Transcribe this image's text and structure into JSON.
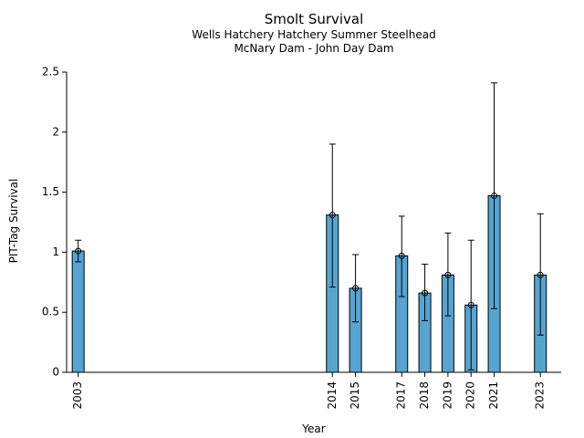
{
  "chart_data": {
    "type": "bar",
    "title": "Smolt Survival",
    "subtitle_lines": [
      "Wells Hatchery Hatchery Summer Steelhead",
      "McNary Dam - John Day Dam"
    ],
    "xlabel": "Year",
    "ylabel": "PIT-Tag Survival",
    "ylim": [
      0,
      2.5
    ],
    "xlim": [
      2002.5,
      2023.9
    ],
    "yticks": [
      0,
      0.5,
      1,
      1.5,
      2,
      2.5
    ],
    "ytick_labels": [
      "0",
      "0.5",
      "1",
      "1.5",
      "2",
      "2.5"
    ],
    "bar_color": "#56a5d1",
    "points": [
      {
        "year": 2003,
        "label": "2003",
        "value": 1.01,
        "lower": 0.92,
        "upper": 1.1
      },
      {
        "year": 2014,
        "label": "2014",
        "value": 1.31,
        "lower": 0.71,
        "upper": 1.9
      },
      {
        "year": 2015,
        "label": "2015",
        "value": 0.7,
        "lower": 0.42,
        "upper": 0.98
      },
      {
        "year": 2017,
        "label": "2017",
        "value": 0.97,
        "lower": 0.63,
        "upper": 1.3
      },
      {
        "year": 2018,
        "label": "2018",
        "value": 0.66,
        "lower": 0.43,
        "upper": 0.9
      },
      {
        "year": 2019,
        "label": "2019",
        "value": 0.81,
        "lower": 0.47,
        "upper": 1.16
      },
      {
        "year": 2020,
        "label": "2020",
        "value": 0.56,
        "lower": 0.02,
        "upper": 1.1
      },
      {
        "year": 2021,
        "label": "2021",
        "value": 1.47,
        "lower": 0.53,
        "upper": 2.41
      },
      {
        "year": 2023,
        "label": "2023",
        "value": 0.81,
        "lower": 0.31,
        "upper": 1.32
      }
    ]
  }
}
